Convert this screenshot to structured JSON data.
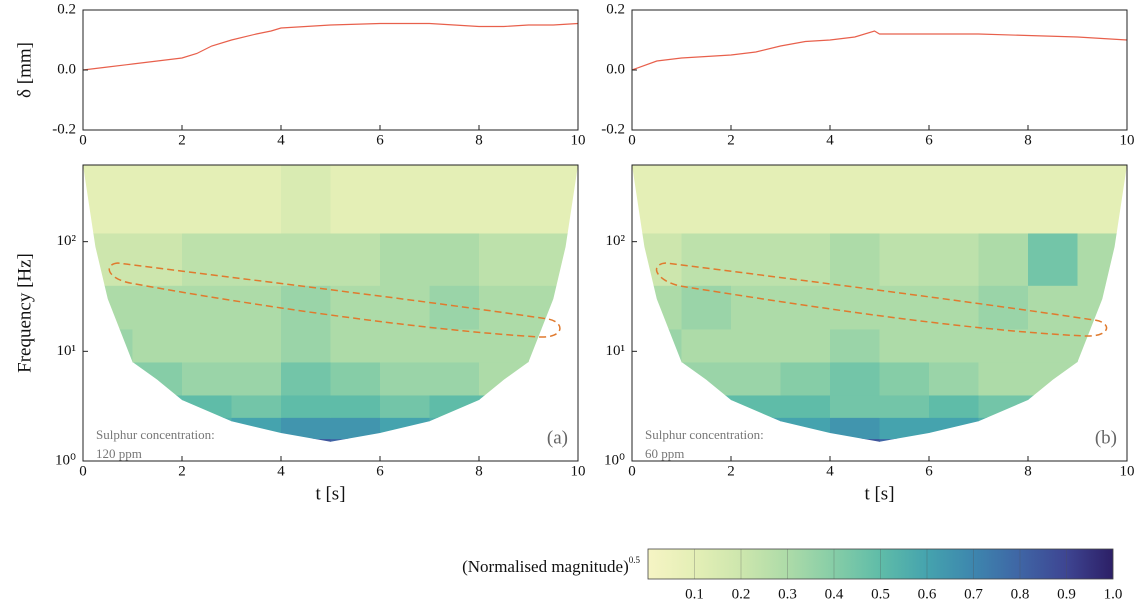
{
  "chart_data": [
    {
      "type": "line",
      "ylabel": "δ [mm]",
      "xlim": [
        0,
        10
      ],
      "xticks": [
        0,
        2,
        4,
        6,
        8,
        10
      ],
      "ylim": [
        -0.2,
        0.2
      ],
      "yticks": [
        -0.2,
        {
          "value": 0,
          "label": "0.0"
        },
        0.2
      ],
      "color": "#e8604c",
      "x": [
        0,
        0.5,
        1,
        1.5,
        2,
        2.3,
        2.6,
        3,
        3.5,
        3.8,
        4,
        4.5,
        5,
        6,
        7,
        7.5,
        8,
        8.5,
        9,
        9.5,
        10
      ],
      "values": [
        0.0,
        0.01,
        0.02,
        0.03,
        0.04,
        0.055,
        0.08,
        0.1,
        0.12,
        0.13,
        0.14,
        0.145,
        0.15,
        0.155,
        0.155,
        0.15,
        0.145,
        0.145,
        0.15,
        0.15,
        0.155
      ]
    },
    {
      "type": "line",
      "xlim": [
        0,
        10
      ],
      "xticks": [
        0,
        2,
        4,
        6,
        8,
        10
      ],
      "ylim": [
        -0.2,
        0.2
      ],
      "yticks": [
        -0.2,
        {
          "value": 0,
          "label": "0.0"
        },
        0.2
      ],
      "color": "#e8604c",
      "x": [
        0,
        0.5,
        1,
        1.5,
        2,
        2.5,
        3,
        3.5,
        4,
        4.5,
        4.9,
        5,
        5.5,
        6,
        7,
        8,
        9,
        10
      ],
      "values": [
        0.0,
        0.03,
        0.04,
        0.045,
        0.05,
        0.06,
        0.08,
        0.095,
        0.1,
        0.11,
        0.13,
        0.12,
        0.12,
        0.12,
        0.12,
        0.115,
        0.11,
        0.1
      ]
    },
    {
      "type": "scalogram",
      "ylabel": "Frequency [Hz]",
      "xlabel": "t [s]",
      "log_y": true,
      "xlim": [
        0,
        10
      ],
      "xticks": [
        0,
        2,
        4,
        6,
        8,
        10
      ],
      "ylim": [
        1,
        500
      ],
      "yticks": [
        {
          "value": 1,
          "label": "10⁰"
        },
        {
          "value": 10,
          "label": "10¹"
        },
        {
          "value": 100,
          "label": "10²"
        }
      ],
      "x_edges": [
        0,
        1,
        2,
        3,
        4,
        5,
        6,
        7,
        8,
        9,
        10
      ],
      "y_edges": [
        1,
        1.6,
        2.5,
        4,
        8,
        16,
        40,
        120,
        500
      ],
      "values": [
        [
          0.6,
          0.6,
          0.6,
          0.7,
          0.85,
          0.8,
          0.7,
          0.6,
          0.6,
          0.6
        ],
        [
          0.55,
          0.55,
          0.55,
          0.6,
          0.65,
          0.65,
          0.6,
          0.55,
          0.55,
          0.55
        ],
        [
          0.5,
          0.5,
          0.5,
          0.45,
          0.5,
          0.5,
          0.45,
          0.5,
          0.5,
          0.5
        ],
        [
          0.4,
          0.4,
          0.35,
          0.35,
          0.45,
          0.4,
          0.35,
          0.35,
          0.3,
          0.35
        ],
        [
          0.35,
          0.3,
          0.3,
          0.3,
          0.35,
          0.3,
          0.3,
          0.3,
          0.3,
          0.3
        ],
        [
          0.3,
          0.3,
          0.3,
          0.3,
          0.35,
          0.3,
          0.3,
          0.35,
          0.3,
          0.3
        ],
        [
          0.2,
          0.2,
          0.25,
          0.25,
          0.25,
          0.25,
          0.3,
          0.3,
          0.25,
          0.25
        ],
        [
          0.1,
          0.1,
          0.1,
          0.1,
          0.15,
          0.1,
          0.1,
          0.1,
          0.1,
          0.1
        ]
      ],
      "cone_of_influence": {
        "x": [
          0,
          0.1,
          0.25,
          0.5,
          1,
          1.5,
          2,
          3,
          4,
          5,
          6,
          7,
          8,
          8.5,
          9,
          9.5,
          9.75,
          9.9,
          10
        ],
        "y": [
          500,
          250,
          90,
          30,
          8,
          5.5,
          3.6,
          2.3,
          1.8,
          1.5,
          1.8,
          2.3,
          3.6,
          5.5,
          8,
          30,
          90,
          250,
          500
        ]
      },
      "annotations": [
        "Sulphur concentration:",
        "120 ppm"
      ],
      "panel_label": "(a)"
    },
    {
      "type": "scalogram",
      "xlabel": "t [s]",
      "log_y": true,
      "xlim": [
        0,
        10
      ],
      "xticks": [
        0,
        2,
        4,
        6,
        8,
        10
      ],
      "ylim": [
        1,
        500
      ],
      "yticks": [
        {
          "value": 1,
          "label": "10⁰"
        },
        {
          "value": 10,
          "label": "10¹"
        },
        {
          "value": 100,
          "label": "10²"
        }
      ],
      "x_edges": [
        0,
        1,
        2,
        3,
        4,
        5,
        6,
        7,
        8,
        9,
        10
      ],
      "y_edges": [
        1,
        1.6,
        2.5,
        4,
        8,
        16,
        40,
        120,
        500
      ],
      "values": [
        [
          0.6,
          0.6,
          0.6,
          0.7,
          0.85,
          0.8,
          0.7,
          0.6,
          0.6,
          0.6
        ],
        [
          0.55,
          0.55,
          0.6,
          0.6,
          0.65,
          0.6,
          0.6,
          0.55,
          0.55,
          0.55
        ],
        [
          0.5,
          0.5,
          0.5,
          0.5,
          0.45,
          0.45,
          0.5,
          0.45,
          0.45,
          0.5
        ],
        [
          0.4,
          0.35,
          0.35,
          0.4,
          0.45,
          0.4,
          0.35,
          0.3,
          0.3,
          0.35
        ],
        [
          0.35,
          0.3,
          0.3,
          0.3,
          0.35,
          0.3,
          0.3,
          0.3,
          0.3,
          0.3
        ],
        [
          0.3,
          0.35,
          0.3,
          0.3,
          0.3,
          0.3,
          0.3,
          0.35,
          0.3,
          0.3
        ],
        [
          0.2,
          0.25,
          0.25,
          0.25,
          0.3,
          0.25,
          0.25,
          0.3,
          0.45,
          0.3
        ],
        [
          0.1,
          0.1,
          0.1,
          0.1,
          0.1,
          0.1,
          0.1,
          0.1,
          0.1,
          0.1
        ]
      ],
      "cone_of_influence": {
        "x": [
          0,
          0.1,
          0.25,
          0.5,
          1,
          1.5,
          2,
          3,
          4,
          5,
          6,
          7,
          8,
          8.5,
          9,
          9.5,
          9.75,
          9.9,
          10
        ],
        "y": [
          500,
          250,
          90,
          30,
          8,
          5.5,
          3.6,
          2.3,
          1.8,
          1.5,
          1.8,
          2.3,
          3.6,
          5.5,
          8,
          30,
          90,
          250,
          500
        ]
      },
      "annotations": [
        "Sulphur concentration:",
        "60 ppm"
      ],
      "panel_label": "(b)"
    }
  ],
  "colorbar": {
    "label": "(Normalised magnitude)",
    "exponent": "0.5",
    "lim": [
      0,
      1
    ],
    "colors": [
      "#f6f4c4",
      "#e4efb6",
      "#cde6ad",
      "#addba8",
      "#86cda7",
      "#5fbca8",
      "#45a3ae",
      "#3d86ae",
      "#3f65a5",
      "#3e4592",
      "#2c1f66"
    ],
    "ticks": [
      0.1,
      0.2,
      0.3,
      0.4,
      0.5,
      0.6,
      0.7,
      0.8,
      0.9,
      {
        "value": 1,
        "label": "1.0"
      }
    ]
  }
}
